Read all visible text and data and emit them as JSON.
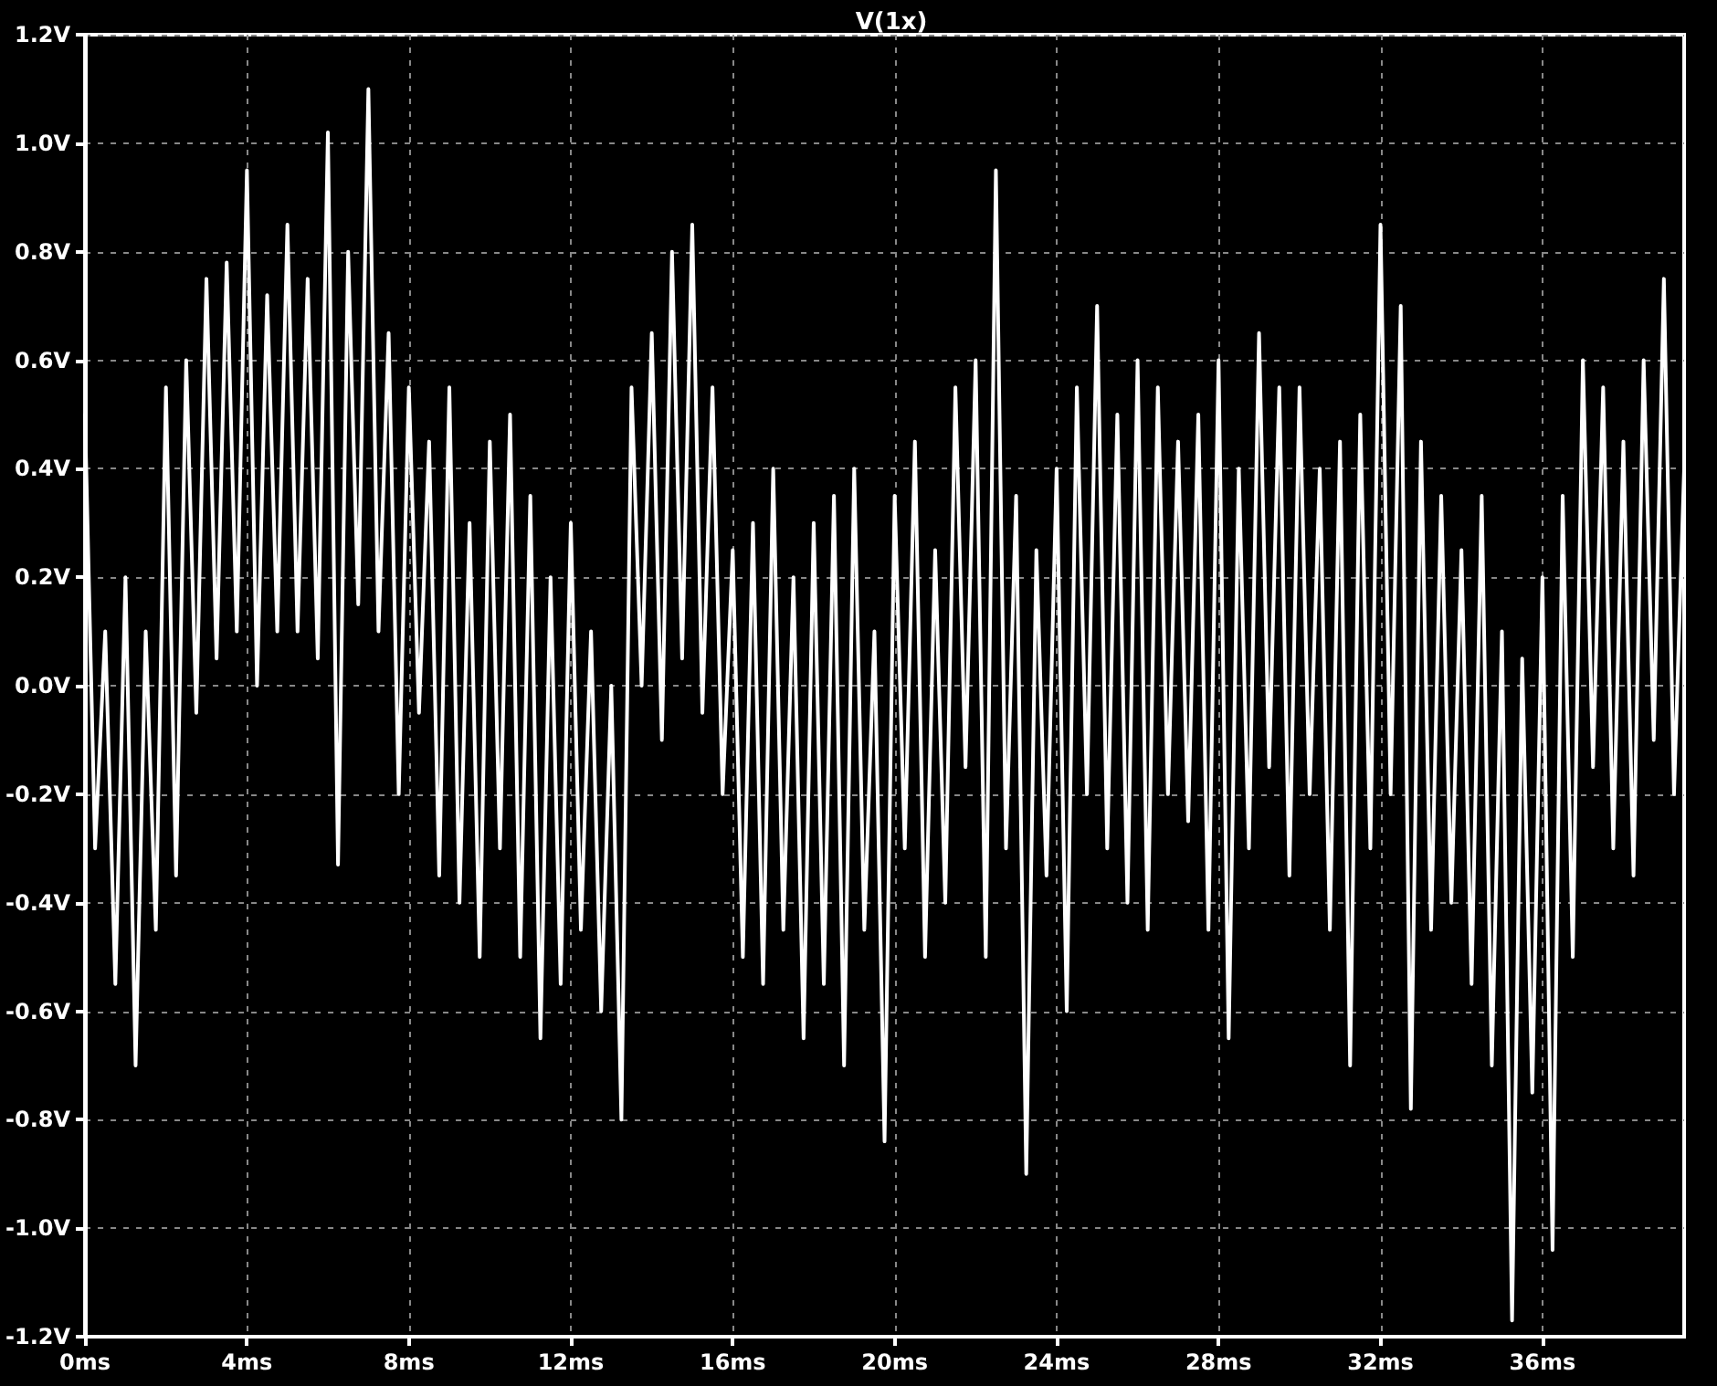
{
  "chart_data": {
    "type": "line",
    "title": "V(1x)",
    "color": "#ffffff",
    "grid": true,
    "marker": "none",
    "line_style": "solid",
    "xlim": [
      0,
      39.5
    ],
    "xticks": [
      {
        "value": 0,
        "label": "0ms"
      },
      {
        "value": 4,
        "label": "4ms"
      },
      {
        "value": 8,
        "label": "8ms"
      },
      {
        "value": 12,
        "label": "12ms"
      },
      {
        "value": 16,
        "label": "16ms"
      },
      {
        "value": 20,
        "label": "20ms"
      },
      {
        "value": 24,
        "label": "24ms"
      },
      {
        "value": 28,
        "label": "28ms"
      },
      {
        "value": 32,
        "label": "32ms"
      },
      {
        "value": 36,
        "label": "36ms"
      }
    ],
    "ylim": [
      -1.2,
      1.2
    ],
    "yticks": [
      {
        "value": -1.2,
        "label": "-1.2V"
      },
      {
        "value": -1.0,
        "label": "-1.0V"
      },
      {
        "value": -0.8,
        "label": "-0.8V"
      },
      {
        "value": -0.6,
        "label": "-0.6V"
      },
      {
        "value": -0.4,
        "label": "-0.4V"
      },
      {
        "value": -0.2,
        "label": "-0.2V"
      },
      {
        "value": 0,
        "label": "0.0V"
      },
      {
        "value": 0.2,
        "label": "0.2V"
      },
      {
        "value": 0.4,
        "label": "0.4V"
      },
      {
        "value": 0.6,
        "label": "0.6V"
      },
      {
        "value": 0.8,
        "label": "0.8V"
      },
      {
        "value": 1.0,
        "label": "1.0V"
      },
      {
        "value": 1.2,
        "label": "1.2V"
      }
    ],
    "x": [
      0,
      0.25,
      0.5,
      0.75,
      1,
      1.25,
      1.5,
      1.75,
      2,
      2.25,
      2.5,
      2.75,
      3,
      3.25,
      3.5,
      3.75,
      4,
      4.25,
      4.5,
      4.75,
      5,
      5.25,
      5.5,
      5.75,
      6,
      6.25,
      6.5,
      6.75,
      7,
      7.25,
      7.5,
      7.75,
      8,
      8.25,
      8.5,
      8.75,
      9,
      9.25,
      9.5,
      9.75,
      10,
      10.25,
      10.5,
      10.75,
      11,
      11.25,
      11.5,
      11.75,
      12,
      12.25,
      12.5,
      12.75,
      13,
      13.25,
      13.5,
      13.75,
      14,
      14.25,
      14.5,
      14.75,
      15,
      15.25,
      15.5,
      15.75,
      16,
      16.25,
      16.5,
      16.75,
      17,
      17.25,
      17.5,
      17.75,
      18,
      18.25,
      18.5,
      18.75,
      19,
      19.25,
      19.5,
      19.75,
      20,
      20.25,
      20.5,
      20.75,
      21,
      21.25,
      21.5,
      21.75,
      22,
      22.25,
      22.5,
      22.75,
      23,
      23.25,
      23.5,
      23.75,
      24,
      24.25,
      24.5,
      24.75,
      25,
      25.25,
      25.5,
      25.75,
      26,
      26.25,
      26.5,
      26.75,
      27,
      27.25,
      27.5,
      27.75,
      28,
      28.25,
      28.5,
      28.75,
      29,
      29.25,
      29.5,
      29.75,
      30,
      30.25,
      30.5,
      30.75,
      31,
      31.25,
      31.5,
      31.75,
      32,
      32.25,
      32.5,
      32.75,
      33,
      33.25,
      33.5,
      33.75,
      34,
      34.25,
      34.5,
      34.75,
      35,
      35.25,
      35.5,
      35.75,
      36,
      36.25,
      36.5,
      36.75,
      37,
      37.25,
      37.5,
      37.75,
      38,
      38.25,
      38.5,
      38.75,
      39,
      39.25,
      39.5
    ],
    "values": [
      0.5,
      -0.3,
      0.1,
      -0.55,
      0.2,
      -0.7,
      0.1,
      -0.45,
      0.55,
      -0.35,
      0.6,
      -0.05,
      0.75,
      0.05,
      0.78,
      0.1,
      0.95,
      0.0,
      0.72,
      0.1,
      0.85,
      0.1,
      0.75,
      0.05,
      1.02,
      -0.33,
      0.8,
      0.15,
      1.1,
      0.1,
      0.65,
      -0.2,
      0.55,
      -0.05,
      0.45,
      -0.35,
      0.55,
      -0.4,
      0.3,
      -0.5,
      0.45,
      -0.3,
      0.5,
      -0.5,
      0.35,
      -0.65,
      0.2,
      -0.55,
      0.3,
      -0.45,
      0.1,
      -0.6,
      0.0,
      -0.8,
      0.55,
      0.0,
      0.65,
      -0.1,
      0.8,
      0.05,
      0.85,
      -0.05,
      0.55,
      -0.2,
      0.25,
      -0.5,
      0.3,
      -0.55,
      0.4,
      -0.45,
      0.2,
      -0.65,
      0.3,
      -0.55,
      0.35,
      -0.7,
      0.4,
      -0.45,
      0.1,
      -0.84,
      0.35,
      -0.3,
      0.45,
      -0.5,
      0.25,
      -0.4,
      0.55,
      -0.15,
      0.6,
      -0.5,
      0.95,
      -0.3,
      0.35,
      -0.9,
      0.25,
      -0.35,
      0.4,
      -0.6,
      0.55,
      -0.2,
      0.7,
      -0.3,
      0.5,
      -0.4,
      0.6,
      -0.45,
      0.55,
      -0.2,
      0.45,
      -0.25,
      0.5,
      -0.45,
      0.6,
      -0.65,
      0.4,
      -0.3,
      0.65,
      -0.15,
      0.55,
      -0.35,
      0.55,
      -0.2,
      0.4,
      -0.45,
      0.45,
      -0.7,
      0.5,
      -0.3,
      0.85,
      -0.2,
      0.7,
      -0.78,
      0.45,
      -0.45,
      0.35,
      -0.4,
      0.25,
      -0.55,
      0.35,
      -0.7,
      0.1,
      -1.17,
      0.05,
      -0.75,
      0.2,
      -1.04,
      0.35,
      -0.5,
      0.6,
      -0.15,
      0.55,
      -0.3,
      0.45,
      -0.35,
      0.6,
      -0.1,
      0.75,
      -0.2,
      0.4
    ]
  }
}
